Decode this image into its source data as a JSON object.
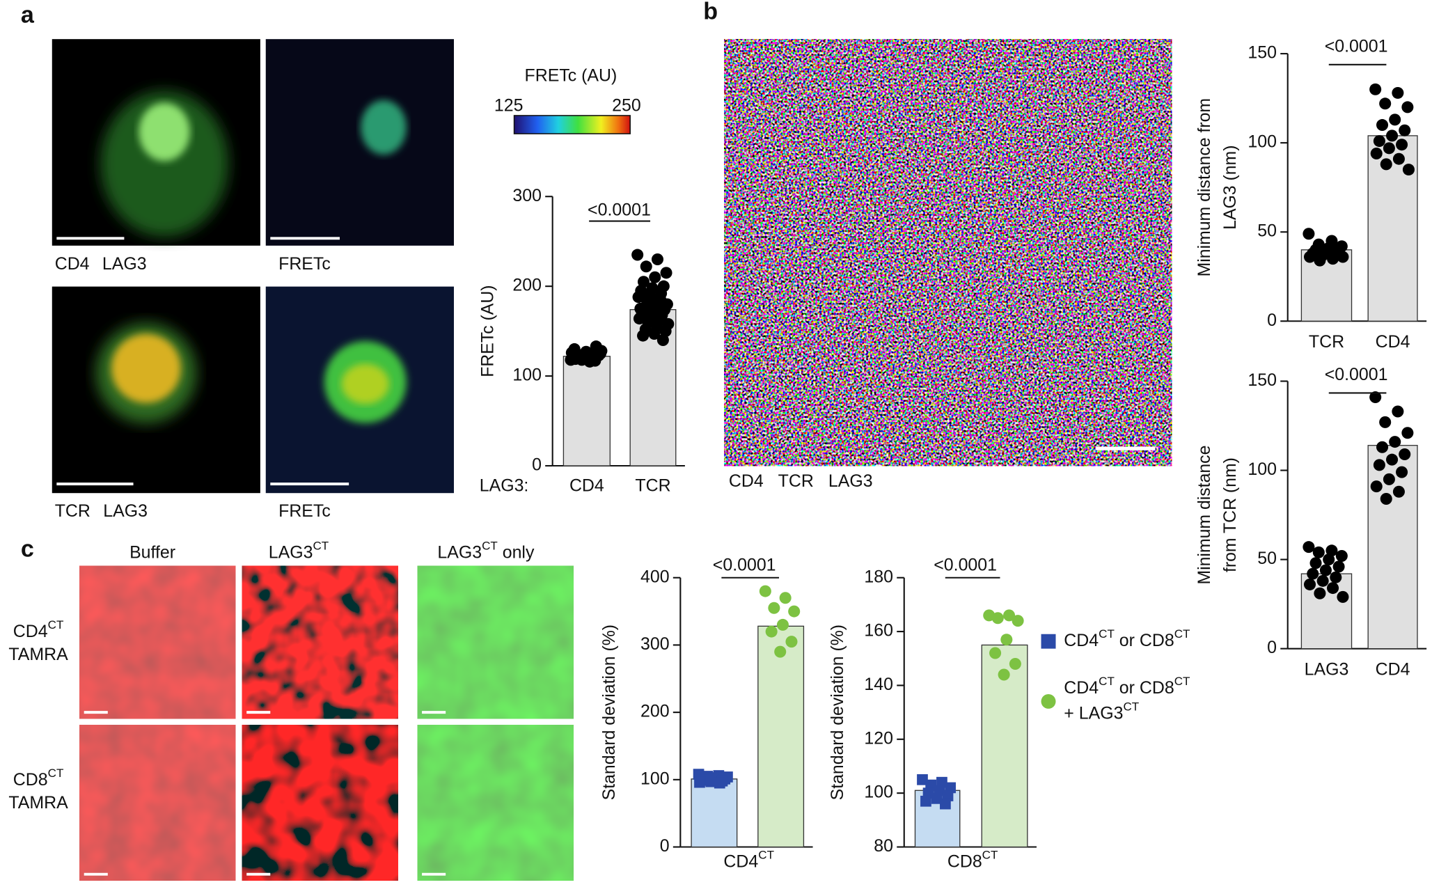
{
  "panels": {
    "a": {
      "letter": "a",
      "image_labels": [
        [
          {
            "t": "CD4",
            "color": "#5cb83a"
          },
          {
            "t": "LAG3",
            "color": "#e02020"
          }
        ],
        [
          {
            "t": "FRETc",
            "color": "rainbow"
          }
        ],
        [
          {
            "t": "TCR",
            "color": "#5cb83a"
          },
          {
            "t": "LAG3",
            "color": "#e02020"
          }
        ],
        [
          {
            "t": "FRETc",
            "color": "rainbow"
          }
        ]
      ],
      "colorbar": {
        "label": "FRETc (AU)",
        "ticks": [
          125,
          250
        ]
      }
    },
    "b": {
      "letter": "b",
      "image_labels": [
        {
          "t": "CD4",
          "color": "#5cb83a"
        },
        {
          "t": "TCR",
          "color": "#e02020"
        },
        {
          "t": "LAG3",
          "color": "#a050c0"
        }
      ]
    },
    "c": {
      "letter": "c",
      "columns": [
        [
          {
            "t": "Buffer"
          }
        ],
        [
          {
            "t": "LAG3"
          },
          {
            "t": "CT",
            "sup": true
          }
        ],
        [
          {
            "t": "LAG3"
          },
          {
            "t": "CT",
            "sup": true
          },
          {
            "t": " only"
          }
        ]
      ],
      "rows": [
        [
          [
            {
              "t": "CD4"
            },
            {
              "t": "CT",
              "sup": true
            }
          ],
          [
            {
              "t": "TAMRA"
            }
          ]
        ],
        [
          [
            {
              "t": "CD8"
            },
            {
              "t": "CT",
              "sup": true
            }
          ],
          [
            {
              "t": "TAMRA"
            }
          ]
        ]
      ]
    }
  },
  "chart_data": [
    {
      "type": "bar",
      "ylabel": "FRETc (AU)",
      "category_prefix": "LAG3:",
      "categories": [
        "CD4",
        "TCR"
      ],
      "values": [
        122,
        174
      ],
      "bar_colors": [
        "#e0e0e0",
        "#e0e0e0"
      ],
      "points": [
        {
          "color": "#000000",
          "marker": "circle",
          "values": [
            118,
            120,
            122,
            125,
            119,
            121,
            123,
            127,
            130,
            117,
            124,
            126,
            120,
            122,
            128,
            116,
            121,
            123,
            125,
            119,
            133,
            122,
            120,
            124,
            118
          ]
        },
        {
          "color": "#000000",
          "marker": "circle",
          "values": [
            235,
            230,
            222,
            215,
            210,
            205,
            200,
            198,
            195,
            192,
            190,
            188,
            185,
            183,
            180,
            178,
            176,
            174,
            172,
            170,
            168,
            166,
            164,
            162,
            160,
            158,
            155,
            152,
            150,
            147,
            145,
            140,
            165,
            175,
            185
          ]
        }
      ],
      "ylim": [
        0,
        300
      ],
      "yticks": [
        0,
        100,
        200,
        300
      ],
      "annotation": "<0.0001"
    },
    {
      "type": "bar",
      "ylabel": [
        "Minimum distance from",
        "LAG3 (nm)"
      ],
      "categories": [
        "TCR",
        "CD4"
      ],
      "values": [
        40,
        104
      ],
      "bar_colors": [
        "#e0e0e0",
        "#e0e0e0"
      ],
      "points": [
        {
          "color": "#000000",
          "marker": "circle",
          "values": [
            49,
            45,
            43,
            42,
            41,
            40,
            40,
            39,
            38,
            38,
            37,
            36,
            35,
            34,
            36
          ]
        },
        {
          "color": "#000000",
          "marker": "circle",
          "values": [
            130,
            128,
            122,
            120,
            113,
            110,
            107,
            104,
            101,
            99,
            97,
            94,
            91,
            88,
            85
          ]
        }
      ],
      "ylim": [
        0,
        150
      ],
      "yticks": [
        0,
        50,
        100,
        150
      ],
      "annotation": "<0.0001"
    },
    {
      "type": "bar",
      "ylabel": [
        "Minimum distance",
        "from TCR (nm)"
      ],
      "categories": [
        "LAG3",
        "CD4"
      ],
      "values": [
        42,
        114
      ],
      "bar_colors": [
        "#e0e0e0",
        "#e0e0e0"
      ],
      "points": [
        {
          "color": "#000000",
          "marker": "circle",
          "values": [
            57,
            55,
            54,
            52,
            50,
            48,
            46,
            44,
            42,
            40,
            38,
            36,
            34,
            31,
            29
          ]
        },
        {
          "color": "#000000",
          "marker": "circle",
          "values": [
            141,
            133,
            127,
            121,
            116,
            113,
            109,
            106,
            103,
            99,
            95,
            91,
            88,
            84
          ]
        }
      ],
      "ylim": [
        0,
        150
      ],
      "yticks": [
        0,
        50,
        100,
        150
      ],
      "annotation": "<0.0001"
    },
    {
      "type": "bar",
      "ylabel": "Standard deviation (%)",
      "xlabel": [
        {
          "t": "CD4"
        },
        {
          "t": "CT",
          "sup": true
        }
      ],
      "values": [
        101,
        328
      ],
      "bar_colors": [
        "#c5dcf2",
        "#d6ebc8"
      ],
      "points": [
        {
          "color": "#2b4aa8",
          "marker": "square",
          "values": [
            108,
            106,
            105,
            104,
            103,
            102,
            101,
            100,
            99,
            98,
            97,
            96,
            95
          ]
        },
        {
          "color": "#7dc242",
          "marker": "circle",
          "values": [
            380,
            370,
            355,
            350,
            330,
            320,
            305,
            290
          ]
        }
      ],
      "ylim": [
        0,
        400
      ],
      "yticks": [
        0,
        100,
        200,
        300,
        400
      ],
      "annotation": "<0.0001"
    },
    {
      "type": "bar",
      "ylabel": "Standard deviation (%)",
      "xlabel": [
        {
          "t": "CD8"
        },
        {
          "t": "CT",
          "sup": true
        }
      ],
      "values": [
        101,
        155
      ],
      "bar_colors": [
        "#c5dcf2",
        "#d6ebc8"
      ],
      "points": [
        {
          "color": "#2b4aa8",
          "marker": "square",
          "values": [
            105,
            104,
            103,
            102,
            101,
            100,
            99,
            98,
            97,
            96
          ]
        },
        {
          "color": "#7dc242",
          "marker": "circle",
          "values": [
            166,
            166,
            165,
            164,
            157,
            152,
            148,
            144
          ]
        }
      ],
      "ylim": [
        80,
        180
      ],
      "yticks": [
        80,
        100,
        120,
        140,
        160,
        180
      ],
      "annotation": "<0.0001",
      "legend": [
        {
          "color": "#2b4aa8",
          "marker": "square",
          "lines": [
            [
              {
                "t": "CD4"
              },
              {
                "t": "CT",
                "sup": true
              },
              {
                "t": " or CD8"
              },
              {
                "t": "CT",
                "sup": true
              }
            ]
          ]
        },
        {
          "color": "#7dc242",
          "marker": "circle",
          "lines": [
            [
              {
                "t": "CD4"
              },
              {
                "t": "CT",
                "sup": true
              },
              {
                "t": " or CD8"
              },
              {
                "t": "CT",
                "sup": true
              }
            ],
            [
              {
                "t": "+ LAG3"
              },
              {
                "t": "CT",
                "sup": true
              }
            ]
          ]
        }
      ]
    }
  ]
}
